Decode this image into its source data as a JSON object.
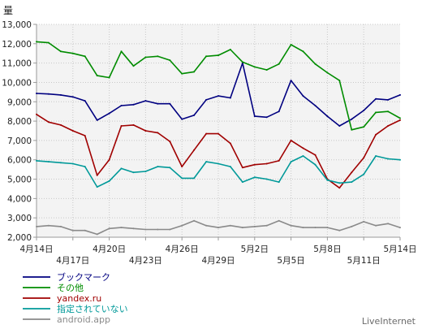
{
  "chart_data": {
    "type": "line",
    "ylabel": "量",
    "ylim": [
      2000,
      13000
    ],
    "y_ticks": [
      "2,000",
      "3,000",
      "4,000",
      "5,000",
      "6,000",
      "7,000",
      "8,000",
      "9,000",
      "10,000",
      "11,000",
      "12,000",
      "13,000"
    ],
    "x_ticks": [
      "4月14日",
      "4月17日",
      "4月20日",
      "4月23日",
      "4月26日",
      "4月29日",
      "5月2日",
      "5月5日",
      "5月8日",
      "5月11日",
      "5月14日"
    ],
    "grid": true,
    "legend": "bottom-left",
    "series": [
      {
        "name": "ブックマーク",
        "color": "#000080",
        "values": [
          9430,
          9400,
          9350,
          9250,
          9050,
          8050,
          8400,
          8800,
          8850,
          9050,
          8900,
          8900,
          8100,
          8300,
          9100,
          9300,
          9200,
          11000,
          8250,
          8200,
          8500,
          10100,
          9300,
          8800,
          8250,
          7750,
          8100,
          8550,
          9150,
          9100,
          9350
        ]
      },
      {
        "name": "その他",
        "color": "#008c00",
        "values": [
          12100,
          12050,
          11600,
          11500,
          11350,
          10350,
          10250,
          11600,
          10850,
          11300,
          11350,
          11150,
          10450,
          10550,
          11350,
          11400,
          11700,
          11050,
          10800,
          10650,
          10950,
          11950,
          11600,
          10950,
          10500,
          10100,
          7550,
          7700,
          8450,
          8500,
          8150
        ]
      },
      {
        "name": "yandex.ru",
        "color": "#a00000",
        "values": [
          8350,
          7950,
          7800,
          7500,
          7250,
          5200,
          6000,
          7750,
          7800,
          7500,
          7400,
          6950,
          5650,
          6500,
          7350,
          7350,
          6850,
          5600,
          5750,
          5800,
          5950,
          7000,
          6600,
          6250,
          5000,
          4550,
          5350,
          6100,
          7300,
          7750,
          8050
        ]
      },
      {
        "name": "指定されていない",
        "color": "#009999",
        "values": [
          5950,
          5900,
          5850,
          5800,
          5650,
          4600,
          4900,
          5550,
          5350,
          5400,
          5650,
          5600,
          5050,
          5050,
          5900,
          5800,
          5650,
          4850,
          5100,
          5000,
          4850,
          5900,
          6200,
          5750,
          4950,
          4800,
          4850,
          5250,
          6200,
          6050,
          6000
        ]
      },
      {
        "name": "android.app",
        "color": "#8a8a8a",
        "values": [
          2550,
          2600,
          2550,
          2350,
          2350,
          2150,
          2450,
          2500,
          2450,
          2400,
          2400,
          2400,
          2600,
          2850,
          2600,
          2500,
          2600,
          2500,
          2550,
          2600,
          2850,
          2600,
          2500,
          2500,
          2500,
          2350,
          2550,
          2800,
          2600,
          2700,
          2500
        ]
      }
    ]
  },
  "watermark": "LiveInternet"
}
